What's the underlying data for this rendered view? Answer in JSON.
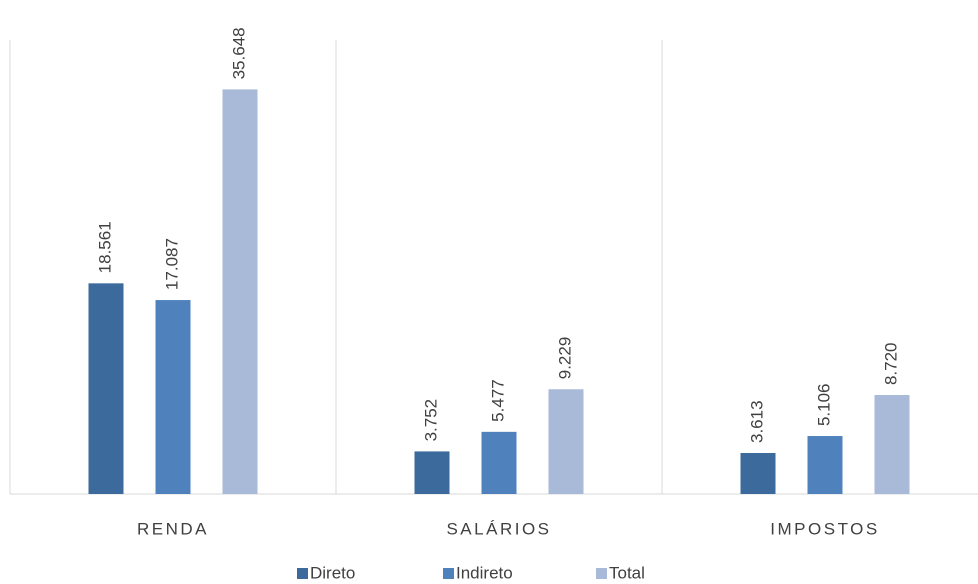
{
  "chart_data": {
    "type": "bar",
    "categories": [
      "RENDA",
      "SALÁRIOS",
      "IMPOSTOS"
    ],
    "series": [
      {
        "name": "Direto",
        "color": "#3d6a9c",
        "values": [
          18561,
          3752,
          3613
        ],
        "value_labels": [
          "18.561",
          "3.752",
          "3.613"
        ]
      },
      {
        "name": "Indireto",
        "color": "#4f81bd",
        "values": [
          17087,
          5477,
          5106
        ],
        "value_labels": [
          "17.087",
          "5.477",
          "5.106"
        ]
      },
      {
        "name": "Total",
        "color": "#a9bad8",
        "values": [
          35648,
          9229,
          8720
        ],
        "value_labels": [
          "35.648",
          "9.229",
          "8.720"
        ]
      }
    ],
    "ylim": [
      0,
      40000
    ],
    "legend": "bottom"
  }
}
